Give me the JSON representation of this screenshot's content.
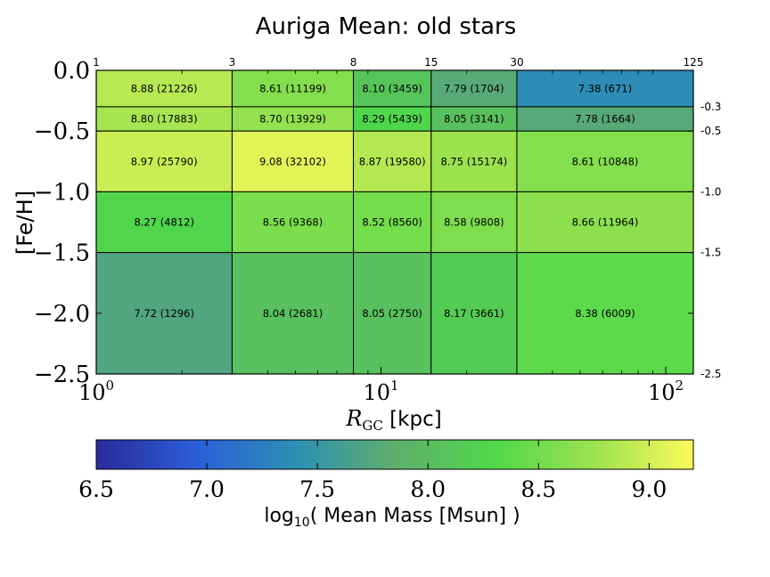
{
  "chart_data": {
    "type": "heatmap",
    "title": "Auriga Mean: old stars",
    "xlabel_main": "R",
    "xlabel_sub": "GC",
    "xlabel_unit": " [kpc]",
    "ylabel": "[Fe/H]",
    "x_scale": "log",
    "xlim": [
      1,
      125
    ],
    "ylim": [
      -2.5,
      0.0
    ],
    "x_ticks": [
      {
        "value": 1,
        "base": "10",
        "exp": "0"
      },
      {
        "value": 10,
        "base": "10",
        "exp": "1"
      },
      {
        "value": 100,
        "base": "10",
        "exp": "2"
      }
    ],
    "y_ticks": [
      {
        "value": 0.0,
        "label": "0.0"
      },
      {
        "value": -0.5,
        "label": "−0.5"
      },
      {
        "value": -1.0,
        "label": "−1.0"
      },
      {
        "value": -1.5,
        "label": "−1.5"
      },
      {
        "value": -2.0,
        "label": "−2.0"
      },
      {
        "value": -2.5,
        "label": "−2.5"
      }
    ],
    "x_edges": [
      {
        "value": 1,
        "label": "1"
      },
      {
        "value": 3,
        "label": "3"
      },
      {
        "value": 8,
        "label": "8"
      },
      {
        "value": 15,
        "label": "15"
      },
      {
        "value": 30,
        "label": "30"
      },
      {
        "value": 125,
        "label": "125"
      }
    ],
    "y_edges": [
      {
        "value": 0.0,
        "label": ""
      },
      {
        "value": -0.3,
        "label": "-0.3"
      },
      {
        "value": -0.5,
        "label": "-0.5"
      },
      {
        "value": -1.0,
        "label": "-1.0"
      },
      {
        "value": -1.5,
        "label": "-1.5"
      },
      {
        "value": -2.5,
        "label": "-2.5"
      }
    ],
    "cells": [
      [
        {
          "v": 8.88,
          "label": "8.88 (21226)"
        },
        {
          "v": 8.61,
          "label": "8.61 (11199)"
        },
        {
          "v": 8.1,
          "label": "8.10 (3459)"
        },
        {
          "v": 7.79,
          "label": "7.79 (1704)"
        },
        {
          "v": 7.38,
          "label": "7.38 (671)"
        }
      ],
      [
        {
          "v": 8.8,
          "label": "8.80 (17883)"
        },
        {
          "v": 8.7,
          "label": "8.70 (13929)"
        },
        {
          "v": 8.29,
          "label": "8.29 (5439)"
        },
        {
          "v": 8.05,
          "label": "8.05 (3141)"
        },
        {
          "v": 7.78,
          "label": "7.78 (1664)"
        }
      ],
      [
        {
          "v": 8.97,
          "label": "8.97 (25790)"
        },
        {
          "v": 9.08,
          "label": "9.08 (32102)"
        },
        {
          "v": 8.87,
          "label": "8.87 (19580)"
        },
        {
          "v": 8.75,
          "label": "8.75 (15174)"
        },
        {
          "v": 8.61,
          "label": "8.61 (10848)"
        }
      ],
      [
        {
          "v": 8.27,
          "label": "8.27 (4812)"
        },
        {
          "v": 8.56,
          "label": "8.56 (9368)"
        },
        {
          "v": 8.52,
          "label": "8.52 (8560)"
        },
        {
          "v": 8.58,
          "label": "8.58 (9808)"
        },
        {
          "v": 8.66,
          "label": "8.66 (11964)"
        }
      ],
      [
        {
          "v": 7.72,
          "label": "7.72 (1296)"
        },
        {
          "v": 8.04,
          "label": "8.04 (2681)"
        },
        {
          "v": 8.05,
          "label": "8.05 (2750)"
        },
        {
          "v": 8.17,
          "label": "8.17 (3661)"
        },
        {
          "v": 8.38,
          "label": "8.38 (6009)"
        }
      ]
    ],
    "colorbar": {
      "label_prefix": "log",
      "label_sub": "10",
      "label_suffix": "( Mean Mass [Msun] )",
      "range": [
        6.5,
        9.2
      ],
      "ticks": [
        {
          "value": 6.5,
          "label": "6.5"
        },
        {
          "value": 7.0,
          "label": "7.0"
        },
        {
          "value": 7.5,
          "label": "7.5"
        },
        {
          "value": 8.0,
          "label": "8.0"
        },
        {
          "value": 8.5,
          "label": "8.5"
        },
        {
          "value": 9.0,
          "label": "9.0"
        }
      ],
      "colormap": [
        "#2a2a9a",
        "#2b5ed8",
        "#2d8fb4",
        "#5fae6c",
        "#4fd84a",
        "#9be24f",
        "#fafa5a"
      ]
    }
  }
}
